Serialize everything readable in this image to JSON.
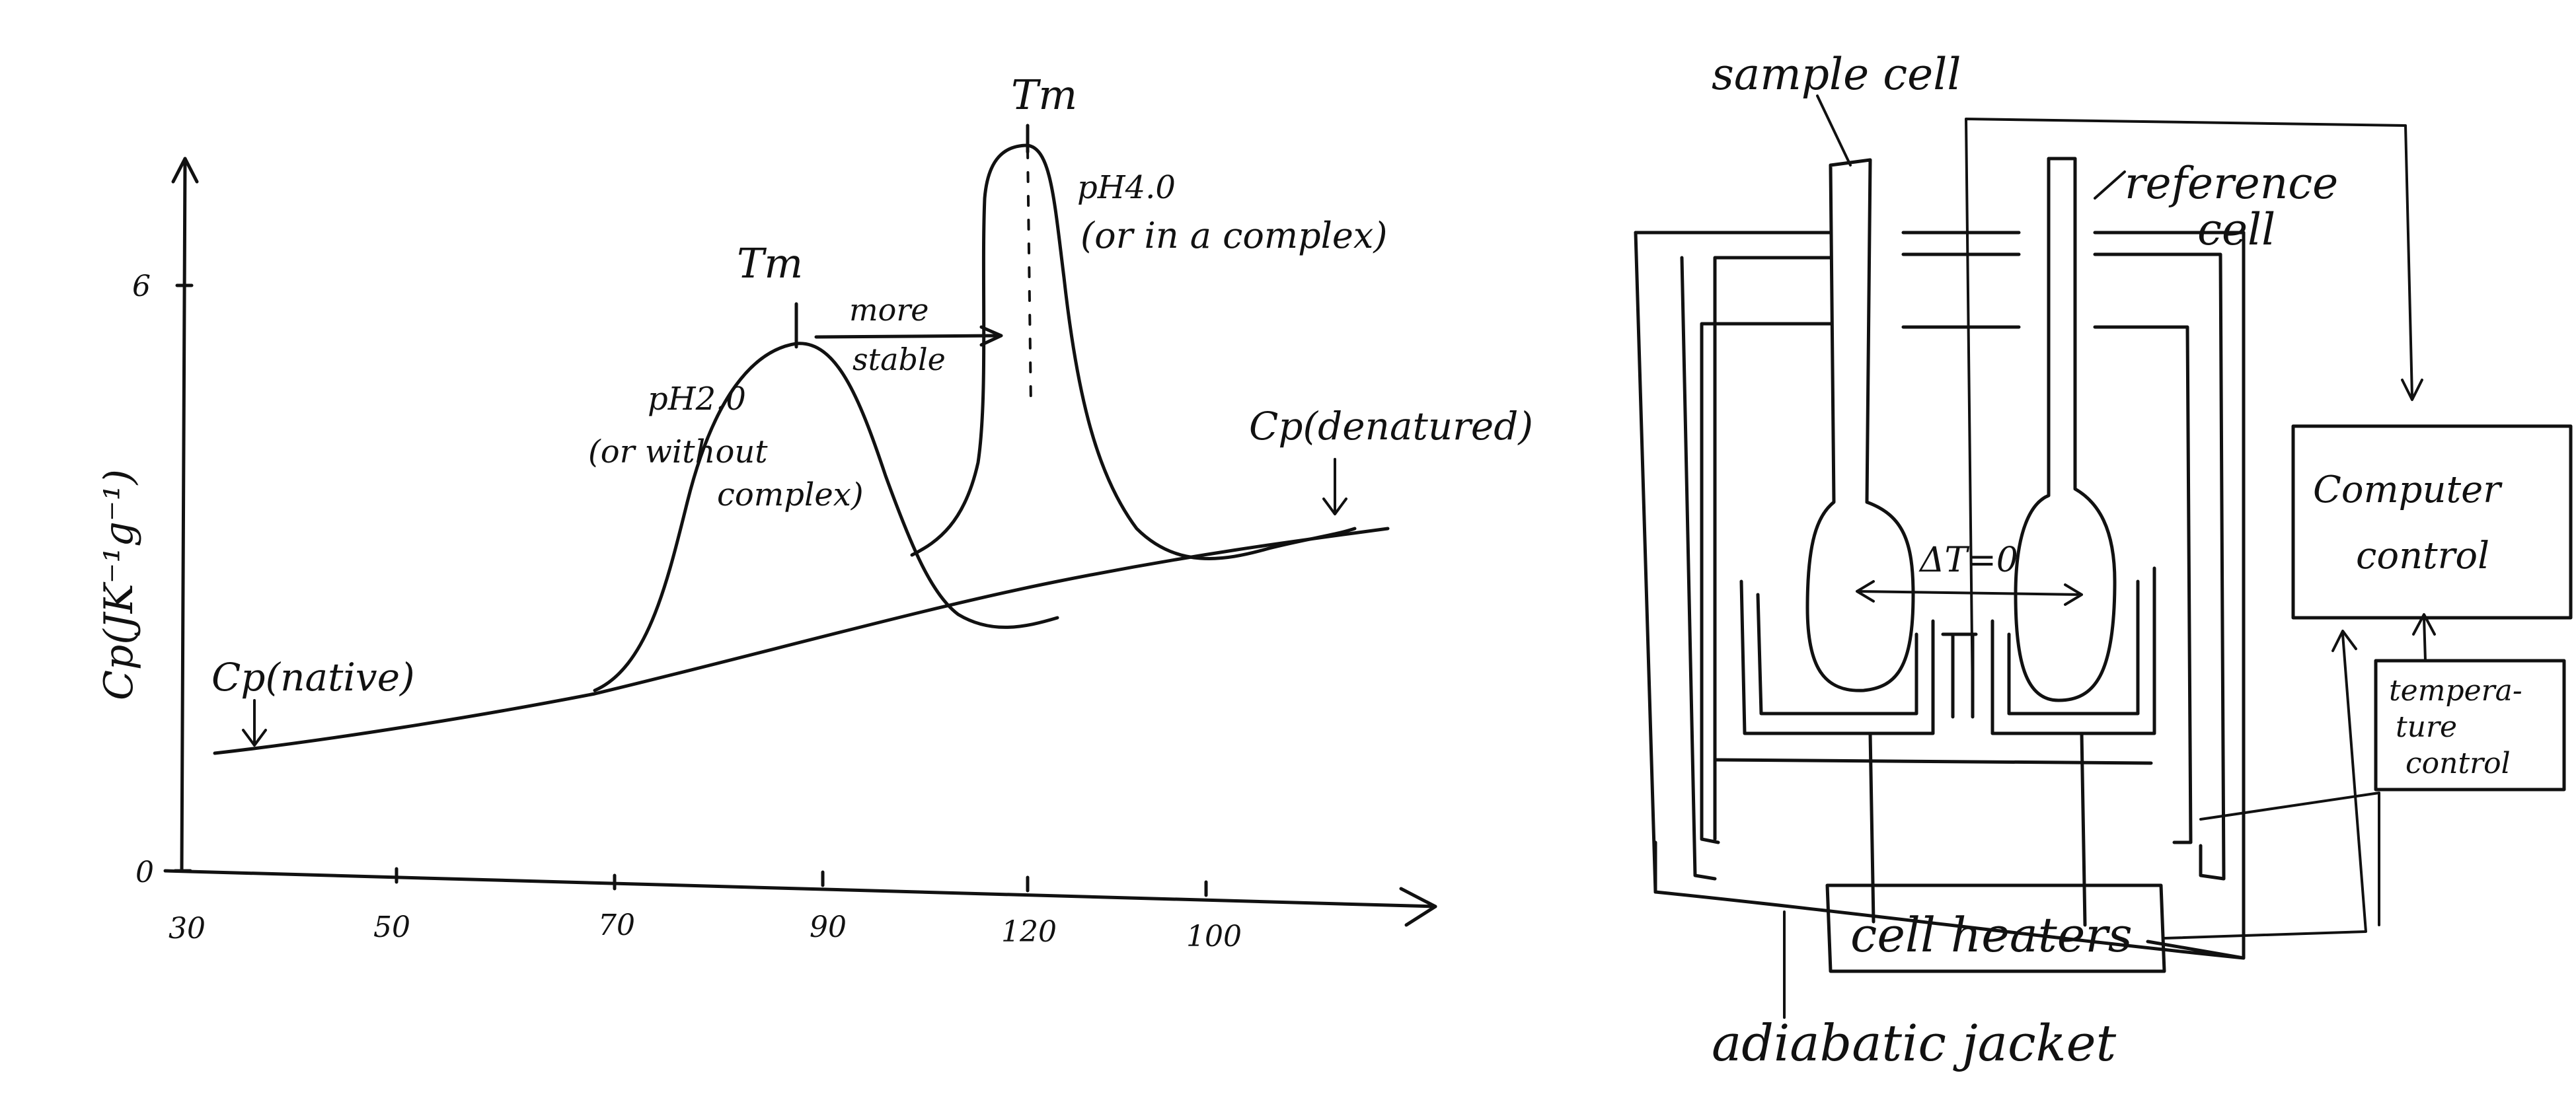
{
  "chart_data": {
    "type": "line",
    "title": "",
    "xlabel": "",
    "ylabel": "Cp(JK⁻¹g⁻¹)",
    "x_ticks": [
      "30",
      "50",
      "70",
      "90",
      "120",
      "100"
    ],
    "y_ticks": [
      "0",
      "6"
    ],
    "annotations": {
      "cp_native": "Cp(native)",
      "cp_denatured": "Cp(denatured)",
      "tm_left": "Tm",
      "tm_right": "Tm",
      "more_stable_1": "more",
      "more_stable_2": "stable",
      "ph_left_1": "pH2.0",
      "ph_left_2": "(or without",
      "ph_left_3": "complex)",
      "ph_right_1": "pH4.0",
      "ph_right_2": "(or in a complex)"
    }
  },
  "apparatus": {
    "sample_cell": "sample cell",
    "reference_cell_1": "reference",
    "reference_cell_2": "cell",
    "delta_t": "ΔT=0",
    "computer_control_1": "Computer",
    "computer_control_2": "control",
    "temperature_control_1": "tempera-",
    "temperature_control_2": "ture",
    "temperature_control_3": "control",
    "cell_heaters": "cell heaters",
    "adiabatic_jacket": "adiabatic jacket"
  }
}
